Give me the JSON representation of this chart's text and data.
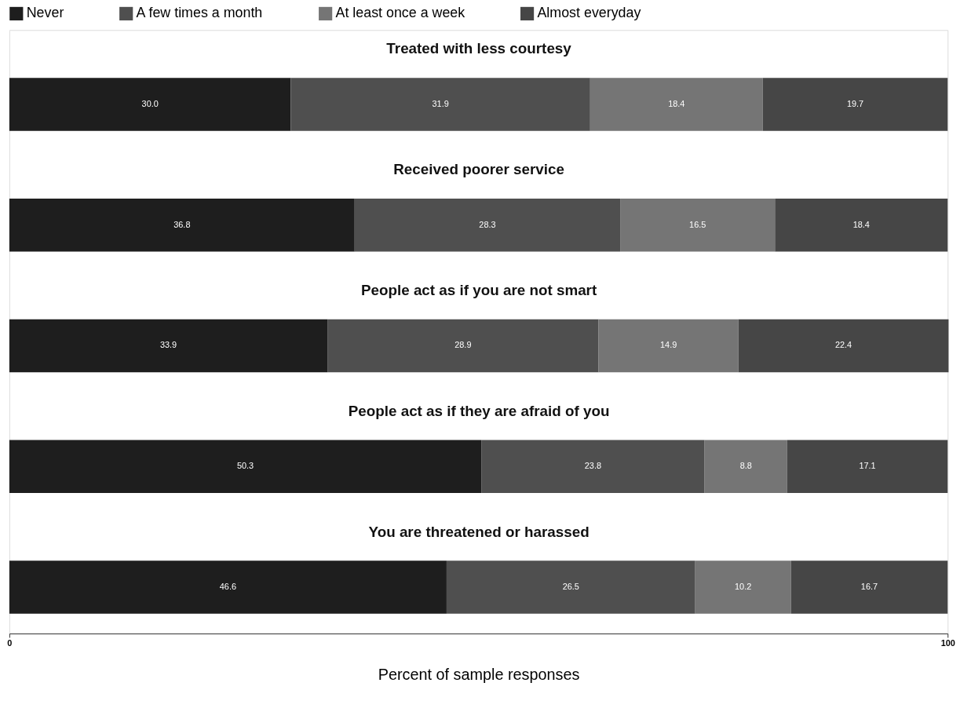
{
  "chart_data": {
    "type": "bar",
    "orientation": "horizontal",
    "stacked": true,
    "categories": [
      "Treated with less courtesy",
      "Received poorer service",
      "People act as if you are not smart",
      "People act as if they are afraid of you",
      "You are threatened or harassed"
    ],
    "xlim": [
      0,
      100
    ],
    "xticks": [
      0,
      100
    ],
    "xlabel": "Percent of sample responses",
    "legend": "top",
    "series": [
      {
        "name": "Never",
        "color": "#1e1e1e",
        "values": [
          30.0,
          36.8,
          33.9,
          50.3,
          46.6
        ],
        "value_labels": [
          "30.0",
          "36.8",
          "33.9",
          "50.3",
          "46.6"
        ]
      },
      {
        "name": "A few times a month",
        "color": "#4f4f4f",
        "values": [
          31.9,
          28.3,
          28.9,
          23.8,
          26.5
        ],
        "value_labels": [
          "31.9",
          "28.3",
          "28.9",
          "23.8",
          "26.5"
        ]
      },
      {
        "name": "At least once a week",
        "color": "#757575",
        "values": [
          18.4,
          16.5,
          14.9,
          8.8,
          10.2
        ],
        "value_labels": [
          "18.4",
          "16.5",
          "14.9",
          "8.8",
          "10.2"
        ]
      },
      {
        "name": "Almost everyday",
        "color": "#464646",
        "values": [
          19.7,
          18.4,
          22.4,
          17.1,
          16.7
        ],
        "value_labels": [
          "19.7",
          "18.4",
          "22.4",
          "17.1",
          "16.7"
        ]
      }
    ]
  }
}
